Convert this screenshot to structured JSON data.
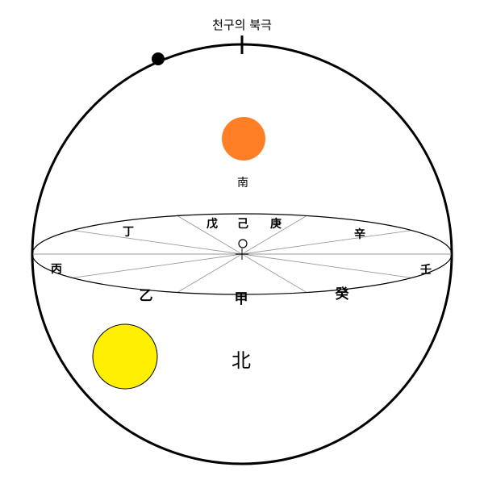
{
  "title": "천구의 북극",
  "directions": {
    "south": "南",
    "north": "北"
  },
  "stems": {
    "gap": "甲",
    "eul": "乙",
    "byeong": "丙",
    "jeong": "丁",
    "mu": "戊",
    "gi": "己",
    "gyeong": "庚",
    "sin": "辛",
    "im": "壬",
    "gye": "癸"
  },
  "colors": {
    "outline": "#000000",
    "orange_sun": "#ff7f27",
    "yellow_sun": "#ffef00",
    "spoke": "#9a9a9a"
  }
}
